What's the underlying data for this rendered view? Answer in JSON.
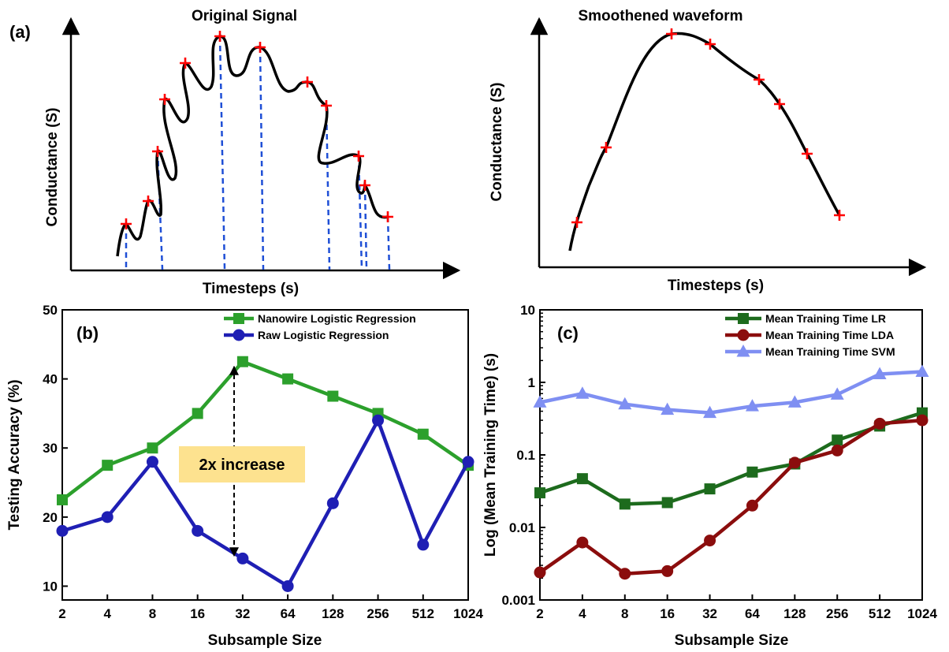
{
  "panels": {
    "a": {
      "label": "(a)",
      "left": {
        "title": "Original Signal",
        "xlabel": "Timesteps (s)",
        "ylabel": "Conductance (S)"
      },
      "right": {
        "title": "Smoothened waveform",
        "xlabel": "Timesteps (s)",
        "ylabel": "Conductance (S)"
      }
    },
    "b": {
      "label": "(b)",
      "annotation": "2x increase"
    },
    "c": {
      "label": "(c)"
    }
  },
  "colors": {
    "green": "#2ca02c",
    "blue": "#1f1fb4",
    "dark_green": "#1d6b1d",
    "dark_red": "#8b0d0d",
    "light_blue": "#7f8ff2",
    "marker_red": "#ff0000",
    "dashed_blue": "#1f4fd6",
    "annotation_bg": "#fde28f"
  },
  "chart_data": [
    {
      "type": "line",
      "panel": "b",
      "categories": [
        "2",
        "4",
        "8",
        "16",
        "32",
        "64",
        "128",
        "256",
        "512",
        "1024"
      ],
      "xlabel": "Subsample Size",
      "ylabel": "Testing Accuracy (%)",
      "ylim": [
        8,
        50
      ],
      "yticks": [
        10,
        20,
        30,
        40,
        50
      ],
      "legend": "top-right",
      "series": [
        {
          "name": "Nanowire Logistic Regression",
          "marker": "square",
          "values": [
            22.5,
            27.5,
            30,
            35,
            42.5,
            40,
            37.5,
            35,
            32,
            27.5
          ]
        },
        {
          "name": "Raw Logistic Regression",
          "marker": "circle",
          "values": [
            18,
            20,
            28,
            18,
            14,
            10,
            22,
            34,
            16,
            28
          ]
        }
      ]
    },
    {
      "type": "line",
      "panel": "c",
      "categories": [
        "2",
        "4",
        "8",
        "16",
        "32",
        "64",
        "128",
        "256",
        "512",
        "1024"
      ],
      "xlabel": "Subsample Size",
      "ylabel": "Log (Mean Training Time) (s)",
      "yscale": "log",
      "ylim": [
        0.001,
        10
      ],
      "yticks": [
        "0.001",
        "0.01",
        "0.1",
        "1",
        "10"
      ],
      "legend": "top-right",
      "series": [
        {
          "name": "Mean Training Time LR",
          "marker": "square",
          "values": [
            0.03,
            0.047,
            0.021,
            0.022,
            0.034,
            0.058,
            0.075,
            0.16,
            0.25,
            0.38
          ]
        },
        {
          "name": "Mean Training Time LDA",
          "marker": "circle",
          "values": [
            0.0024,
            0.0062,
            0.0023,
            0.0025,
            0.0066,
            0.02,
            0.078,
            0.115,
            0.27,
            0.3
          ]
        },
        {
          "name": "Mean Training Time SVM",
          "marker": "triangle",
          "values": [
            0.53,
            0.7,
            0.5,
            0.42,
            0.38,
            0.47,
            0.53,
            0.68,
            1.3,
            1.4
          ]
        }
      ]
    }
  ]
}
